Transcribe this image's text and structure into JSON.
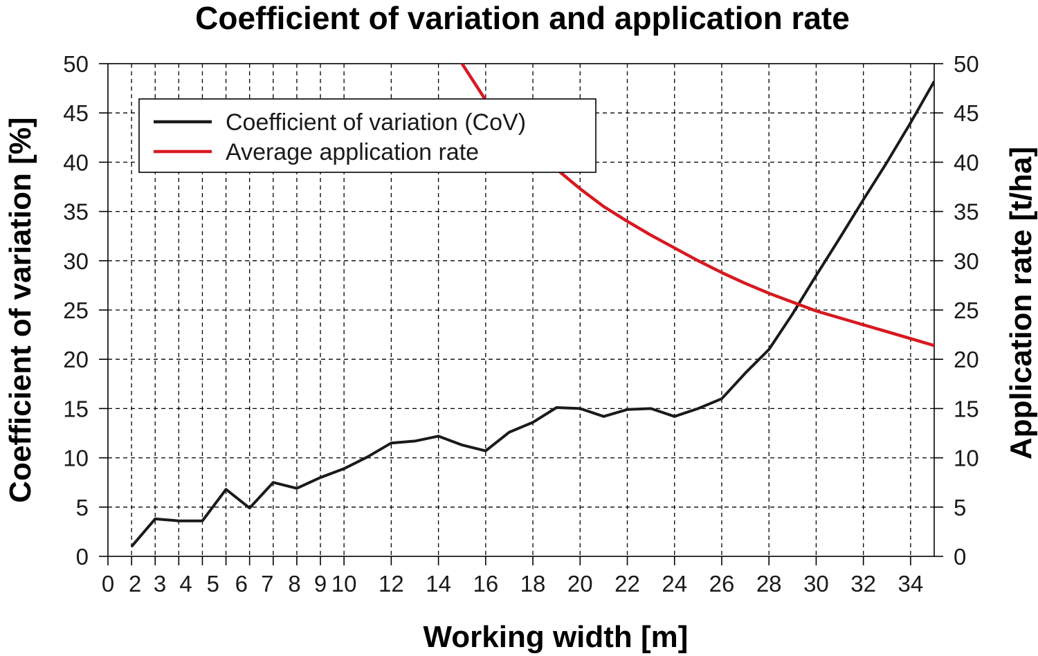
{
  "chart_data": {
    "type": "line",
    "title": "Coefficient of variation and application rate",
    "xlabel": "Working width [m]",
    "ylabel_left": "Coefficient of variation [%]",
    "ylabel_right": "Application rate [t/ha]",
    "xlim": [
      0,
      35
    ],
    "ylim_left": [
      0,
      50
    ],
    "ylim_right": [
      0,
      50
    ],
    "x_ticks": [
      0,
      1,
      2,
      3,
      4,
      5,
      6,
      7,
      8,
      9,
      10,
      12,
      14,
      16,
      18,
      20,
      22,
      24,
      26,
      28,
      30,
      32,
      34
    ],
    "x_tick_labels": [
      "0",
      "2",
      "3",
      "4",
      "5",
      "6",
      "7",
      "8",
      "9",
      "10",
      "12",
      "14",
      "16",
      "18",
      "20",
      "22",
      "24",
      "26",
      "28",
      "30",
      "32",
      "34"
    ],
    "x_tick_label_positions": [
      0,
      1.15,
      2.2,
      3.3,
      4.45,
      5.65,
      6.75,
      7.9,
      9.0,
      10.0,
      12,
      14,
      16,
      18,
      20,
      22,
      24,
      26,
      28,
      30,
      32,
      34
    ],
    "y_ticks": [
      0,
      5,
      10,
      15,
      20,
      25,
      30,
      35,
      40,
      45,
      50
    ],
    "grid": true,
    "legend_position": "top-left",
    "colors": {
      "cov": "#1a1a1a",
      "rate": "#d71920"
    },
    "series": [
      {
        "name": "Coefficient of variation (CoV)",
        "axis": "left",
        "x": [
          1,
          2,
          3,
          4,
          5,
          6,
          7,
          8,
          9,
          10,
          11,
          12,
          13,
          14,
          15,
          16,
          17,
          18,
          19,
          20,
          21,
          22,
          23,
          24,
          25,
          26,
          27,
          28,
          29,
          30,
          31,
          32,
          33,
          34,
          35
        ],
        "values": [
          1.0,
          3.8,
          3.6,
          3.6,
          6.8,
          4.9,
          7.5,
          6.9,
          8.0,
          8.9,
          10.1,
          11.5,
          11.7,
          12.2,
          11.3,
          10.7,
          12.6,
          13.6,
          15.1,
          15.0,
          14.2,
          14.9,
          15.0,
          14.2,
          15.0,
          16.0,
          18.6,
          21.0,
          24.6,
          28.5,
          32.3,
          36.2,
          40.0,
          44.0,
          48.2
        ]
      },
      {
        "name": "Average application rate",
        "axis": "right",
        "x": [
          15.0,
          16,
          17,
          18,
          19,
          20,
          21,
          22,
          23,
          24,
          25,
          26,
          27,
          28,
          29,
          30,
          31,
          32,
          33,
          34,
          35
        ],
        "values": [
          50.0,
          46.3,
          43.4,
          41.3,
          39.3,
          37.3,
          35.5,
          34.0,
          32.6,
          31.3,
          30.0,
          28.8,
          27.7,
          26.7,
          25.8,
          24.9,
          24.2,
          23.5,
          22.8,
          22.1,
          21.4
        ]
      }
    ]
  }
}
